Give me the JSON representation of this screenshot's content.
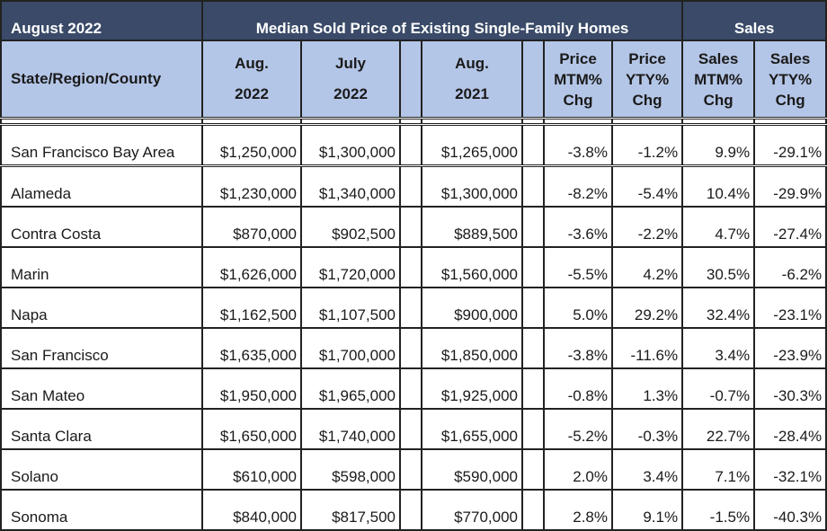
{
  "header": {
    "period": "August 2022",
    "price_group": "Median Sold Price of Existing Single-Family Homes",
    "sales_group": "Sales"
  },
  "columns": {
    "name": "State/Region/County",
    "aug2022_line1": "Aug.",
    "aug2022_line2": "2022",
    "july2022_line1": "July",
    "july2022_line2": "2022",
    "aug2021_line1": "Aug.",
    "aug2021_line2": "2021",
    "price_mtm": [
      "Price",
      "MTM%",
      "Chg"
    ],
    "price_yty": [
      "Price",
      "YTY%",
      "Chg"
    ],
    "sales_mtm": [
      "Sales",
      "MTM%",
      "Chg"
    ],
    "sales_yty": [
      "Sales",
      "YTY%",
      "Chg"
    ]
  },
  "rows": [
    {
      "name": "San Francisco Bay Area",
      "aug2022": "$1,250,000",
      "july2022": "$1,300,000",
      "aug2021": "$1,265,000",
      "price_mtm": "-3.8%",
      "price_yty": "-1.2%",
      "sales_mtm": "9.9%",
      "sales_yty": "-29.1%"
    },
    {
      "name": "Alameda",
      "aug2022": "$1,230,000",
      "july2022": "$1,340,000",
      "aug2021": "$1,300,000",
      "price_mtm": "-8.2%",
      "price_yty": "-5.4%",
      "sales_mtm": "10.4%",
      "sales_yty": "-29.9%"
    },
    {
      "name": "Contra Costa",
      "aug2022": "$870,000",
      "july2022": "$902,500",
      "aug2021": "$889,500",
      "price_mtm": "-3.6%",
      "price_yty": "-2.2%",
      "sales_mtm": "4.7%",
      "sales_yty": "-27.4%"
    },
    {
      "name": "Marin",
      "aug2022": "$1,626,000",
      "july2022": "$1,720,000",
      "aug2021": "$1,560,000",
      "price_mtm": "-5.5%",
      "price_yty": "4.2%",
      "sales_mtm": "30.5%",
      "sales_yty": "-6.2%"
    },
    {
      "name": "Napa",
      "aug2022": "$1,162,500",
      "july2022": "$1,107,500",
      "aug2021": "$900,000",
      "price_mtm": "5.0%",
      "price_yty": "29.2%",
      "sales_mtm": "32.4%",
      "sales_yty": "-23.1%"
    },
    {
      "name": "San Francisco",
      "aug2022": "$1,635,000",
      "july2022": "$1,700,000",
      "aug2021": "$1,850,000",
      "price_mtm": "-3.8%",
      "price_yty": "-11.6%",
      "sales_mtm": "3.4%",
      "sales_yty": "-23.9%"
    },
    {
      "name": "San Mateo",
      "aug2022": "$1,950,000",
      "july2022": "$1,965,000",
      "aug2021": "$1,925,000",
      "price_mtm": "-0.8%",
      "price_yty": "1.3%",
      "sales_mtm": "-0.7%",
      "sales_yty": "-30.3%"
    },
    {
      "name": "Santa Clara",
      "aug2022": "$1,650,000",
      "july2022": "$1,740,000",
      "aug2021": "$1,655,000",
      "price_mtm": "-5.2%",
      "price_yty": "-0.3%",
      "sales_mtm": "22.7%",
      "sales_yty": "-28.4%"
    },
    {
      "name": "Solano",
      "aug2022": "$610,000",
      "july2022": "$598,000",
      "aug2021": "$590,000",
      "price_mtm": "2.0%",
      "price_yty": "3.4%",
      "sales_mtm": "7.1%",
      "sales_yty": "-32.1%"
    },
    {
      "name": "Sonoma",
      "aug2022": "$840,000",
      "july2022": "$817,500",
      "aug2021": "$770,000",
      "price_mtm": "2.8%",
      "price_yty": "9.1%",
      "sales_mtm": "-1.5%",
      "sales_yty": "-40.3%"
    }
  ]
}
